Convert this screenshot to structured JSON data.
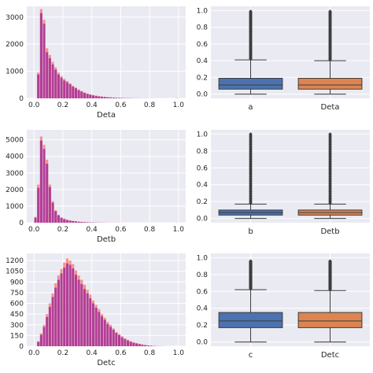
{
  "chart_data": [
    {
      "type": "bar",
      "subtype": "histogram-overlay",
      "xlabel": "Deta",
      "ylabel": "",
      "xlim": [
        -0.05,
        1.05
      ],
      "ylim": [
        0,
        3400
      ],
      "xticks": [
        "0.0",
        "0.2",
        "0.4",
        "0.6",
        "0.8",
        "1.0"
      ],
      "yticks": [
        "0",
        "1000",
        "2000",
        "3000"
      ],
      "grid": true,
      "bin_width": 0.02,
      "x": [
        0.01,
        0.03,
        0.05,
        0.07,
        0.09,
        0.11,
        0.13,
        0.15,
        0.17,
        0.19,
        0.21,
        0.23,
        0.25,
        0.27,
        0.29,
        0.31,
        0.33,
        0.35,
        0.37,
        0.39,
        0.41,
        0.43,
        0.45,
        0.47,
        0.49,
        0.51,
        0.53,
        0.55,
        0.57,
        0.59,
        0.61,
        0.63,
        0.65,
        0.67,
        0.69,
        0.71,
        0.73,
        0.75,
        0.77,
        0.79,
        0.81,
        0.83,
        0.85,
        0.87,
        0.89,
        0.91,
        0.93,
        0.95,
        0.97,
        0.99
      ],
      "series": [
        {
          "color": "#fa8072",
          "values": [
            0,
            950,
            3300,
            2900,
            1850,
            1600,
            1350,
            1150,
            950,
            820,
            720,
            640,
            560,
            470,
            400,
            330,
            270,
            220,
            180,
            150,
            120,
            100,
            80,
            65,
            55,
            45,
            38,
            30,
            24,
            20,
            16,
            13,
            10,
            8,
            6,
            5,
            4,
            3,
            3,
            2,
            2,
            2,
            1,
            1,
            1,
            1,
            1,
            0,
            0,
            5
          ]
        },
        {
          "color": "#a0289a",
          "values": [
            0,
            880,
            3150,
            2750,
            1700,
            1480,
            1250,
            1060,
            880,
            760,
            660,
            590,
            520,
            430,
            370,
            300,
            250,
            200,
            165,
            135,
            110,
            90,
            72,
            60,
            50,
            40,
            33,
            27,
            21,
            17,
            14,
            11,
            9,
            7,
            5,
            4,
            3,
            3,
            2,
            2,
            2,
            1,
            1,
            1,
            1,
            1,
            0,
            0,
            0,
            4
          ]
        }
      ]
    },
    {
      "type": "box",
      "categories": [
        "a",
        "Deta"
      ],
      "ylim": [
        -0.05,
        1.05
      ],
      "yticks": [
        "0.0",
        "0.2",
        "0.4",
        "0.6",
        "0.8",
        "1.0"
      ],
      "grid": true,
      "boxes": [
        {
          "color": "#4c72b0",
          "whislo": 0.0,
          "q1": 0.06,
          "med": 0.11,
          "q3": 0.19,
          "whishi": 0.41,
          "flier_min": 0.42,
          "flier_max": 0.99
        },
        {
          "color": "#dd8452",
          "whislo": 0.0,
          "q1": 0.06,
          "med": 0.11,
          "q3": 0.19,
          "whishi": 0.4,
          "flier_min": 0.41,
          "flier_max": 0.99
        }
      ]
    },
    {
      "type": "bar",
      "subtype": "histogram-overlay",
      "xlabel": "Detb",
      "ylabel": "",
      "xlim": [
        -0.05,
        1.05
      ],
      "ylim": [
        0,
        5600
      ],
      "xticks": [
        "0.0",
        "0.2",
        "0.4",
        "0.6",
        "0.8",
        "1.0"
      ],
      "yticks": [
        "0",
        "1000",
        "2000",
        "3000",
        "4000",
        "5000"
      ],
      "grid": true,
      "bin_width": 0.02,
      "x": [
        0.01,
        0.03,
        0.05,
        0.07,
        0.09,
        0.11,
        0.13,
        0.15,
        0.17,
        0.19,
        0.21,
        0.23,
        0.25,
        0.27,
        0.29,
        0.31,
        0.33,
        0.35,
        0.37,
        0.39,
        0.41,
        0.43,
        0.45,
        0.47,
        0.49,
        0.51,
        0.53,
        0.55,
        0.57,
        0.59,
        0.61,
        0.63,
        0.65,
        0.67,
        0.69,
        0.71,
        0.73,
        0.75,
        0.77,
        0.79,
        0.81,
        0.83,
        0.85,
        0.87,
        0.89,
        0.91,
        0.93,
        0.95,
        0.97,
        0.99
      ],
      "series": [
        {
          "color": "#fa8072",
          "values": [
            350,
            2300,
            5200,
            4700,
            3800,
            2300,
            1300,
            750,
            480,
            320,
            240,
            180,
            140,
            110,
            85,
            65,
            50,
            40,
            30,
            24,
            18,
            14,
            11,
            9,
            7,
            5,
            4,
            3,
            3,
            2,
            2,
            1,
            1,
            1,
            1,
            1,
            0,
            0,
            0,
            0,
            0,
            0,
            0,
            0,
            0,
            0,
            0,
            0,
            0,
            5
          ]
        },
        {
          "color": "#a0289a",
          "values": [
            300,
            2100,
            4950,
            4450,
            3550,
            2150,
            1200,
            690,
            440,
            290,
            215,
            160,
            125,
            98,
            75,
            58,
            44,
            35,
            27,
            21,
            16,
            12,
            10,
            8,
            6,
            4,
            3,
            3,
            2,
            2,
            1,
            1,
            1,
            1,
            1,
            0,
            0,
            0,
            0,
            0,
            0,
            0,
            0,
            0,
            0,
            0,
            0,
            0,
            0,
            4
          ]
        }
      ]
    },
    {
      "type": "box",
      "categories": [
        "b",
        "Detb"
      ],
      "ylim": [
        -0.05,
        1.05
      ],
      "yticks": [
        "0.0",
        "0.2",
        "0.4",
        "0.6",
        "0.8",
        "1.0"
      ],
      "grid": true,
      "boxes": [
        {
          "color": "#4c72b0",
          "whislo": 0.0,
          "q1": 0.04,
          "med": 0.07,
          "q3": 0.1,
          "whishi": 0.17,
          "flier_min": 0.18,
          "flier_max": 1.0
        },
        {
          "color": "#dd8452",
          "whislo": 0.0,
          "q1": 0.04,
          "med": 0.07,
          "q3": 0.1,
          "whishi": 0.17,
          "flier_min": 0.18,
          "flier_max": 1.0
        }
      ]
    },
    {
      "type": "bar",
      "subtype": "histogram-overlay",
      "xlabel": "Detc",
      "ylabel": "",
      "xlim": [
        -0.05,
        1.05
      ],
      "ylim": [
        0,
        1300
      ],
      "xticks": [
        "0.0",
        "0.2",
        "0.4",
        "0.6",
        "0.8",
        "1.0"
      ],
      "yticks": [
        "0",
        "150",
        "300",
        "450",
        "600",
        "750",
        "900",
        "1050",
        "1200"
      ],
      "grid": true,
      "bin_width": 0.02,
      "x": [
        0.01,
        0.03,
        0.05,
        0.07,
        0.09,
        0.11,
        0.13,
        0.15,
        0.17,
        0.19,
        0.21,
        0.23,
        0.25,
        0.27,
        0.29,
        0.31,
        0.33,
        0.35,
        0.37,
        0.39,
        0.41,
        0.43,
        0.45,
        0.47,
        0.49,
        0.51,
        0.53,
        0.55,
        0.57,
        0.59,
        0.61,
        0.63,
        0.65,
        0.67,
        0.69,
        0.71,
        0.73,
        0.75,
        0.77,
        0.79,
        0.81,
        0.83,
        0.85,
        0.87,
        0.89,
        0.91,
        0.93,
        0.95,
        0.97,
        0.99
      ],
      "series": [
        {
          "color": "#fa8072",
          "values": [
            0,
            70,
            180,
            300,
            450,
            600,
            740,
            880,
            990,
            1080,
            1170,
            1230,
            1200,
            1150,
            1060,
            990,
            930,
            860,
            790,
            720,
            640,
            580,
            520,
            450,
            400,
            340,
            300,
            250,
            200,
            170,
            140,
            110,
            90,
            70,
            55,
            45,
            35,
            25,
            18,
            12,
            8,
            5,
            3,
            2,
            1,
            1,
            0,
            0,
            0,
            0
          ]
        },
        {
          "color": "#a0289a",
          "values": [
            0,
            60,
            160,
            270,
            410,
            550,
            690,
            820,
            930,
            1020,
            1100,
            1160,
            1140,
            1090,
            1000,
            930,
            870,
            800,
            740,
            670,
            600,
            540,
            480,
            420,
            370,
            310,
            270,
            230,
            185,
            155,
            125,
            100,
            80,
            62,
            48,
            38,
            30,
            22,
            15,
            10,
            7,
            4,
            2,
            1,
            1,
            0,
            0,
            0,
            0,
            0
          ]
        }
      ]
    },
    {
      "type": "box",
      "categories": [
        "c",
        "Detc"
      ],
      "ylim": [
        -0.05,
        1.05
      ],
      "yticks": [
        "0.0",
        "0.2",
        "0.4",
        "0.6",
        "0.8",
        "1.0"
      ],
      "grid": true,
      "boxes": [
        {
          "color": "#4c72b0",
          "whislo": 0.0,
          "q1": 0.17,
          "med": 0.25,
          "q3": 0.35,
          "whishi": 0.62,
          "flier_min": 0.63,
          "flier_max": 0.96
        },
        {
          "color": "#dd8452",
          "whislo": 0.0,
          "q1": 0.17,
          "med": 0.25,
          "q3": 0.35,
          "whishi": 0.61,
          "flier_min": 0.62,
          "flier_max": 0.96
        }
      ]
    }
  ]
}
